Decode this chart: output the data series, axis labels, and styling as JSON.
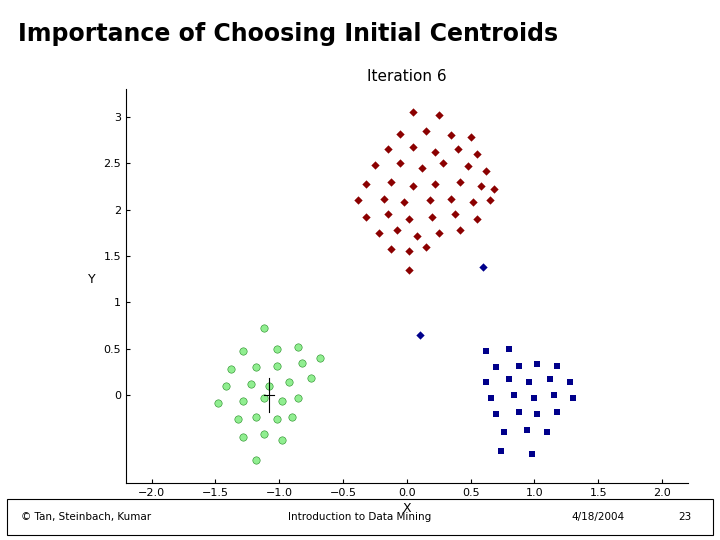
{
  "title": "Importance of Choosing Initial Centroids",
  "subtitle": "Iteration 6",
  "footer_left": "© Tan, Steinbach, Kumar",
  "footer_center": "Introduction to Data Mining",
  "footer_right": "4/18/2004",
  "footer_page": "23",
  "bar1_color": "#00bcd4",
  "bar2_color": "#9c27b0",
  "background_color": "#ffffff",
  "red_cluster_color": "#8b0000",
  "green_cluster_color": "#90ee90",
  "green_edge_color": "#228B22",
  "blue_color": "#00008b",
  "red_points": [
    [
      0.05,
      3.05
    ],
    [
      0.25,
      3.02
    ],
    [
      -0.05,
      2.82
    ],
    [
      0.15,
      2.85
    ],
    [
      0.35,
      2.8
    ],
    [
      0.5,
      2.78
    ],
    [
      -0.15,
      2.65
    ],
    [
      0.05,
      2.68
    ],
    [
      0.22,
      2.62
    ],
    [
      0.4,
      2.65
    ],
    [
      0.55,
      2.6
    ],
    [
      -0.25,
      2.48
    ],
    [
      -0.05,
      2.5
    ],
    [
      0.12,
      2.45
    ],
    [
      0.28,
      2.5
    ],
    [
      0.48,
      2.47
    ],
    [
      0.62,
      2.42
    ],
    [
      -0.32,
      2.28
    ],
    [
      -0.12,
      2.3
    ],
    [
      0.05,
      2.25
    ],
    [
      0.22,
      2.28
    ],
    [
      0.42,
      2.3
    ],
    [
      0.58,
      2.25
    ],
    [
      0.68,
      2.22
    ],
    [
      -0.38,
      2.1
    ],
    [
      -0.18,
      2.12
    ],
    [
      -0.02,
      2.08
    ],
    [
      0.18,
      2.1
    ],
    [
      0.35,
      2.12
    ],
    [
      0.52,
      2.08
    ],
    [
      0.65,
      2.1
    ],
    [
      -0.32,
      1.92
    ],
    [
      -0.15,
      1.95
    ],
    [
      0.02,
      1.9
    ],
    [
      0.2,
      1.92
    ],
    [
      0.38,
      1.95
    ],
    [
      0.55,
      1.9
    ],
    [
      -0.22,
      1.75
    ],
    [
      -0.08,
      1.78
    ],
    [
      0.08,
      1.72
    ],
    [
      0.25,
      1.75
    ],
    [
      0.42,
      1.78
    ],
    [
      -0.12,
      1.58
    ],
    [
      0.02,
      1.55
    ],
    [
      0.15,
      1.6
    ],
    [
      0.02,
      1.35
    ]
  ],
  "blue_outlier_points": [
    [
      0.6,
      1.38
    ],
    [
      0.1,
      0.65
    ]
  ],
  "green_points": [
    [
      -1.12,
      0.72
    ],
    [
      -1.28,
      0.48
    ],
    [
      -1.02,
      0.5
    ],
    [
      -0.85,
      0.52
    ],
    [
      -1.38,
      0.28
    ],
    [
      -1.18,
      0.3
    ],
    [
      -1.02,
      0.32
    ],
    [
      -0.82,
      0.35
    ],
    [
      -0.68,
      0.4
    ],
    [
      -1.42,
      0.1
    ],
    [
      -1.22,
      0.12
    ],
    [
      -1.08,
      0.1
    ],
    [
      -0.92,
      0.14
    ],
    [
      -0.75,
      0.18
    ],
    [
      -1.48,
      -0.08
    ],
    [
      -1.28,
      -0.06
    ],
    [
      -1.12,
      -0.03
    ],
    [
      -0.98,
      -0.06
    ],
    [
      -0.85,
      -0.03
    ],
    [
      -1.32,
      -0.26
    ],
    [
      -1.18,
      -0.23
    ],
    [
      -1.02,
      -0.26
    ],
    [
      -0.9,
      -0.23
    ],
    [
      -1.28,
      -0.45
    ],
    [
      -1.12,
      -0.42
    ],
    [
      -0.98,
      -0.48
    ],
    [
      -1.18,
      -0.7
    ]
  ],
  "blue_square_points": [
    [
      0.7,
      0.3
    ],
    [
      0.88,
      0.32
    ],
    [
      1.02,
      0.34
    ],
    [
      1.18,
      0.32
    ],
    [
      0.62,
      0.14
    ],
    [
      0.8,
      0.17
    ],
    [
      0.96,
      0.14
    ],
    [
      1.12,
      0.17
    ],
    [
      1.28,
      0.14
    ],
    [
      0.66,
      -0.03
    ],
    [
      0.84,
      0.0
    ],
    [
      1.0,
      -0.03
    ],
    [
      1.15,
      0.0
    ],
    [
      1.3,
      -0.03
    ],
    [
      0.7,
      -0.2
    ],
    [
      0.88,
      -0.18
    ],
    [
      1.02,
      -0.2
    ],
    [
      1.18,
      -0.18
    ],
    [
      0.76,
      -0.4
    ],
    [
      0.94,
      -0.38
    ],
    [
      1.1,
      -0.4
    ],
    [
      0.74,
      -0.6
    ],
    [
      0.98,
      -0.63
    ],
    [
      0.62,
      0.48
    ],
    [
      0.8,
      0.5
    ]
  ],
  "centroid_x": -1.08,
  "centroid_y": 0.0,
  "xlim": [
    -2.2,
    2.2
  ],
  "ylim": [
    -0.95,
    3.3
  ],
  "xticks": [
    -2,
    -1.5,
    -1,
    -0.5,
    0,
    0.5,
    1,
    1.5,
    2
  ],
  "ytick_vals": [
    0,
    0.5,
    1,
    1.5,
    2,
    2.5,
    3
  ],
  "ytick_labels": [
    "0",
    "0.5",
    "1",
    "1.5",
    "2",
    "2.5",
    "3"
  ],
  "marker_size_diamond": 18,
  "marker_size_circle": 28,
  "marker_size_square": 18
}
